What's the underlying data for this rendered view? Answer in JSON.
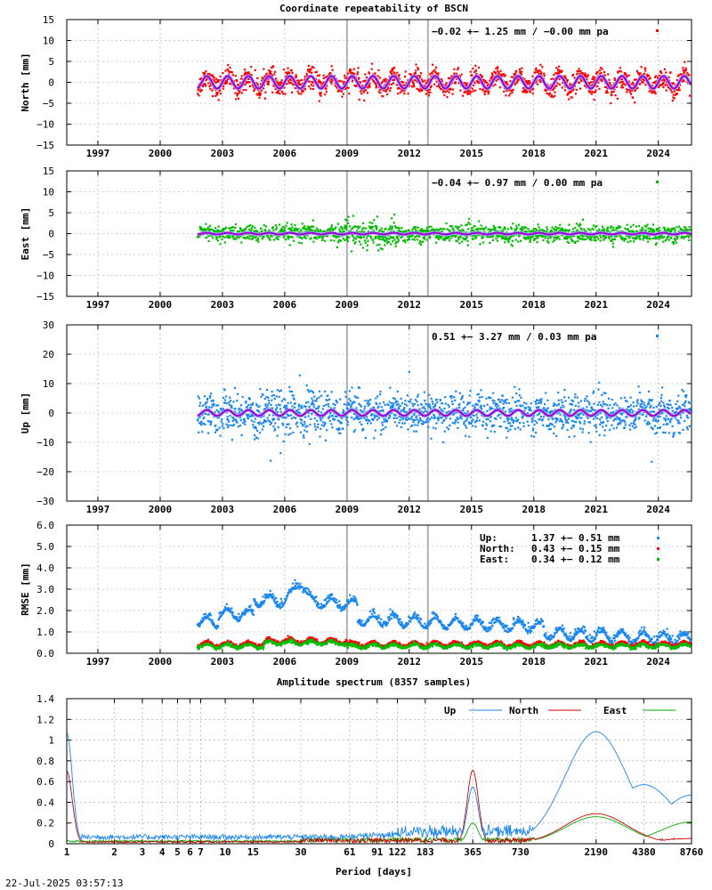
{
  "figure_title": "Coordinate repeatability of BSCN",
  "timestamp": "22-Jul-2025 03:57:13",
  "chart_data": [
    {
      "type": "scatter",
      "id": "north",
      "ylabel": "North [mm]",
      "ylim": [
        -15,
        15
      ],
      "yticks": [
        15,
        10,
        5,
        0,
        -5,
        -10,
        -15
      ],
      "yticklabels": [
        "15",
        "10",
        "5",
        "0",
        "−5",
        "−10",
        "−15"
      ],
      "xlim": [
        1995.5,
        2025.6
      ],
      "xticks": [
        1997,
        2000,
        2003,
        2006,
        2009,
        2012,
        2015,
        2018,
        2021,
        2024
      ],
      "data_start": 2001.8,
      "data_end": 2025.55,
      "annotation": "−0.02 +− 1.25 mm / −0.00 mm pa",
      "point_color": "#ff0000",
      "model_color": "#9900cc",
      "model_outline": "#aaaaff",
      "annual_amplitude_mm": 1.5,
      "scatter_sigma_mm": 1.25,
      "vertical_markers": [
        2009.0,
        2012.9
      ],
      "grid": true
    },
    {
      "type": "scatter",
      "id": "east",
      "ylabel": "East [mm]",
      "ylim": [
        -15,
        15
      ],
      "yticks": [
        15,
        10,
        5,
        0,
        -5,
        -10,
        -15
      ],
      "yticklabels": [
        "15",
        "10",
        "5",
        "0",
        "−5",
        "−10",
        "−15"
      ],
      "xlim": [
        1995.5,
        2025.6
      ],
      "xticks": [
        1997,
        2000,
        2003,
        2006,
        2009,
        2012,
        2015,
        2018,
        2021,
        2024
      ],
      "data_start": 2001.8,
      "data_end": 2025.55,
      "annotation": "−0.04 +− 0.97 mm /  0.00 mm pa",
      "point_color": "#00bb00",
      "model_color": "#9900cc",
      "model_outline": "#aaaaff",
      "annual_amplitude_mm": 0.2,
      "scatter_sigma_mm": 0.97,
      "vertical_markers": [
        2009.0,
        2012.9
      ],
      "grid": true
    },
    {
      "type": "scatter",
      "id": "up",
      "ylabel": "Up [mm]",
      "ylim": [
        -30,
        30
      ],
      "yticks": [
        30,
        20,
        10,
        0,
        -10,
        -20,
        -30
      ],
      "yticklabels": [
        "30",
        "20",
        "10",
        "0",
        "−10",
        "−20",
        "−30"
      ],
      "xlim": [
        1995.5,
        2025.6
      ],
      "xticks": [
        1997,
        2000,
        2003,
        2006,
        2009,
        2012,
        2015,
        2018,
        2021,
        2024
      ],
      "data_start": 2001.8,
      "data_end": 2025.55,
      "annotation": "0.51 +− 3.27 mm /  0.03 mm pa",
      "point_color": "#1a86f0",
      "model_color": "#9900cc",
      "model_outline": "#aaaaff",
      "annual_amplitude_mm": 1.0,
      "scatter_sigma_mm": 3.27,
      "vertical_markers": [
        2009.0,
        2012.9
      ],
      "grid": true
    },
    {
      "type": "scatter",
      "id": "rmse",
      "ylabel": "RMSE [mm]",
      "ylim": [
        0,
        6
      ],
      "yticks": [
        6,
        5,
        4,
        3,
        2,
        1,
        0
      ],
      "yticklabels": [
        "6.0",
        "5.0",
        "4.0",
        "3.0",
        "2.0",
        "1.0",
        "0.0"
      ],
      "xlim": [
        1995.5,
        2025.6
      ],
      "xticks": [
        1997,
        2000,
        2003,
        2006,
        2009,
        2012,
        2015,
        2018,
        2021,
        2024
      ],
      "data_start": 2001.8,
      "data_end": 2025.55,
      "vertical_markers": [
        2009.0,
        2012.9
      ],
      "grid": true,
      "legend": [
        {
          "name": "Up:",
          "value": "1.37 +− 0.51 mm",
          "color": "#1a86f0"
        },
        {
          "name": "North:",
          "value": "0.43 +− 0.15 mm",
          "color": "#ff0000"
        },
        {
          "name": "East:",
          "value": "0.34 +− 0.12 mm",
          "color": "#00bb00"
        }
      ]
    },
    {
      "type": "line",
      "id": "spectrum",
      "title": "Amplitude spectrum (8357 samples)",
      "xlabel": "Period [days]",
      "xscale": "log",
      "xlim": [
        1,
        8760
      ],
      "xticks": [
        1,
        2,
        3,
        4,
        5,
        6,
        7,
        10,
        15,
        30,
        61,
        91,
        122,
        183,
        365,
        730,
        2190,
        4380,
        8760
      ],
      "ylim": [
        0,
        1.4
      ],
      "yticks": [
        1.4,
        1.2,
        1.0,
        0.8,
        0.6,
        0.4,
        0.2,
        0.0
      ],
      "yticklabels": [
        "1.4",
        "1.2",
        "1",
        "0.8",
        "0.6",
        "0.4",
        "0.2",
        "0"
      ],
      "legend_position": "top-right",
      "series": [
        {
          "name": "Up",
          "color": "#1a86f0",
          "peaks": [
            [
              1,
              1.07
            ],
            [
              365,
              0.55
            ],
            [
              2190,
              1.08
            ],
            [
              4380,
              0.57
            ],
            [
              8760,
              0.47
            ]
          ]
        },
        {
          "name": "North",
          "color": "#cc0000",
          "peaks": [
            [
              1,
              0.7
            ],
            [
              365,
              0.71
            ],
            [
              2190,
              0.29
            ],
            [
              8760,
              0.05
            ]
          ]
        },
        {
          "name": "East",
          "color": "#00aa00",
          "peaks": [
            [
              365,
              0.2
            ],
            [
              2190,
              0.26
            ],
            [
              8760,
              0.21
            ]
          ]
        }
      ]
    }
  ]
}
